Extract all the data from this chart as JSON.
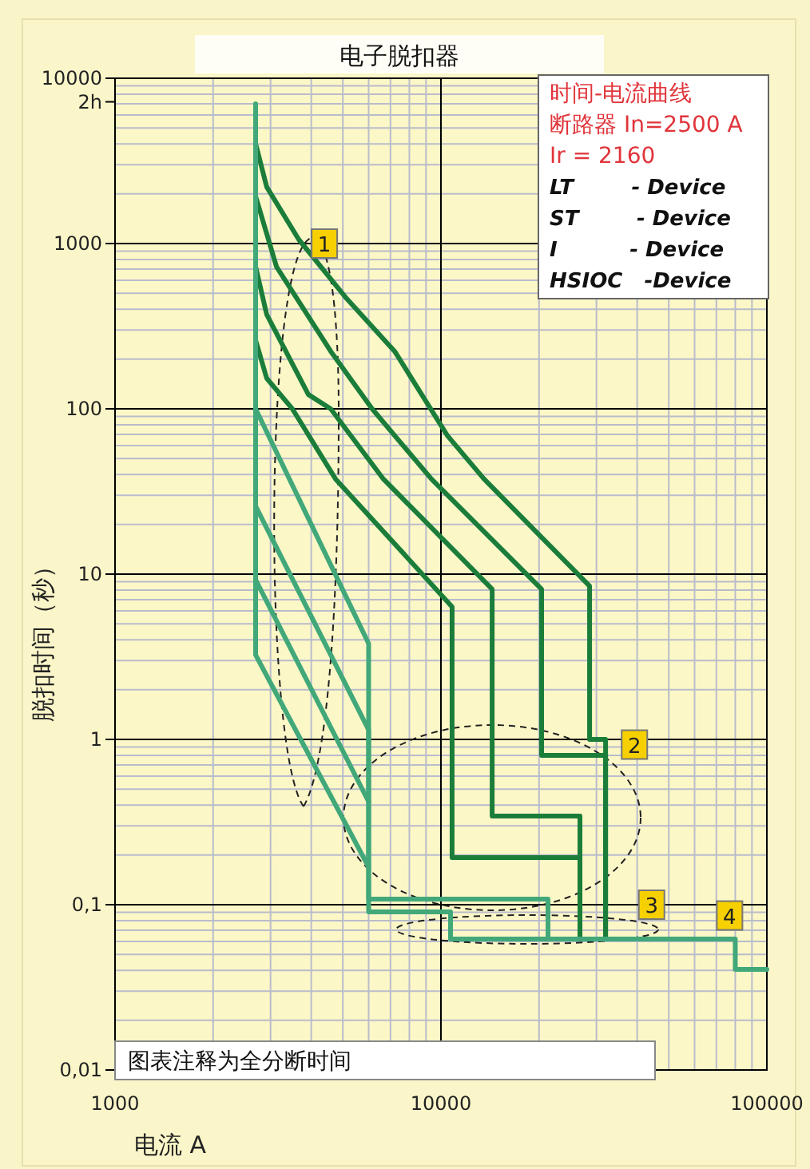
{
  "chart_data": {
    "type": "line",
    "title": "电子脱扣器",
    "xlabel": "电流 A",
    "ylabel": "脱扣时间（秒）",
    "log": "xy",
    "grid": true,
    "marker": "none",
    "line_style": "solid",
    "xlim": [
      1000,
      100000
    ],
    "xticks": [
      1000,
      10000,
      100000
    ],
    "ylim": [
      0.01,
      10000
    ],
    "yticks": [
      {
        "value": 0.01,
        "label": "0,01"
      },
      {
        "value": 0.1,
        "label": "0,1"
      },
      1,
      10,
      100,
      1000,
      10000
    ],
    "ref_lines": [
      {
        "axis": "y",
        "value": 7200,
        "label": "2h"
      }
    ],
    "series": [
      {
        "color": "#1b7d3a",
        "x": [
          2700,
          2920,
          3660,
          5140,
          7210,
          10460,
          13560,
          28580,
          28580,
          32000,
          32000
        ],
        "values": [
          4020,
          2200,
          1060,
          464,
          223,
          69,
          37.6,
          8.47,
          1,
          1,
          0.062
        ]
      },
      {
        "color": "#1b7d3a",
        "x": [
          2700,
          3130,
          4590,
          6150,
          9350,
          20360,
          20360,
          32000,
          32000
        ],
        "values": [
          1930,
          724,
          223,
          100,
          37.6,
          8.1,
          0.8,
          0.8,
          0.062
        ]
      },
      {
        "color": "#1b7d3a",
        "x": [
          2700,
          2920,
          3920,
          4590,
          6660,
          14360,
          14360,
          26700,
          26700
        ],
        "values": [
          724,
          372,
          122,
          100,
          37.6,
          8.1,
          0.344,
          0.344,
          0.062
        ]
      },
      {
        "color": "#1b7d3a",
        "x": [
          2700,
          2920,
          3500,
          4750,
          10820,
          10820,
          26700,
          26700
        ],
        "values": [
          260,
          153,
          100,
          37.6,
          6.34,
          0.193,
          0.193,
          0.062
        ]
      },
      {
        "color": "#42a87a",
        "x": [
          2700,
          2700,
          6000,
          6000,
          21300,
          21300
        ],
        "values": [
          7000,
          100,
          3.8,
          0.108,
          0.108,
          0.062
        ]
      },
      {
        "color": "#42a87a",
        "x": [
          2700,
          6000,
          6000,
          10700,
          10700,
          80000,
          80000,
          100000
        ],
        "values": [
          25.8,
          1.14,
          0.0905,
          0.0905,
          0.062,
          0.062,
          0.0406,
          0.0406
        ]
      },
      {
        "color": "#42a87a",
        "x": [
          2700,
          6000
        ],
        "values": [
          9.25,
          0.42
        ]
      },
      {
        "color": "#42a87a",
        "x": [
          2700,
          2700,
          6000
        ],
        "values": [
          100,
          3.25,
          0.169
        ]
      }
    ],
    "annotations": [
      "时间-电流曲线",
      "断路器 In=2500 A",
      "Ir = 2160",
      "LT        - Device",
      "ST        - Device",
      "I          - Device",
      "HSIOC   -Device",
      {
        "text": "1",
        "x": 4340,
        "y": 1000
      },
      {
        "text": "2",
        "x": 38800,
        "y": 0.93
      },
      {
        "text": "3",
        "x": 43800,
        "y": 0.1
      },
      {
        "text": "4",
        "x": 76000,
        "y": 0.086
      },
      "图表注释为全分断时间"
    ]
  }
}
